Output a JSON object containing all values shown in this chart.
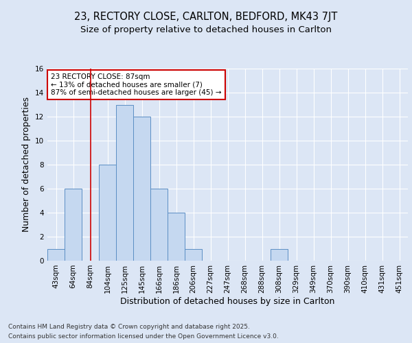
{
  "title_line1": "23, RECTORY CLOSE, CARLTON, BEDFORD, MK43 7JT",
  "title_line2": "Size of property relative to detached houses in Carlton",
  "xlabel": "Distribution of detached houses by size in Carlton",
  "ylabel": "Number of detached properties",
  "categories": [
    "43sqm",
    "64sqm",
    "84sqm",
    "104sqm",
    "125sqm",
    "145sqm",
    "166sqm",
    "186sqm",
    "206sqm",
    "227sqm",
    "247sqm",
    "268sqm",
    "288sqm",
    "308sqm",
    "329sqm",
    "349sqm",
    "370sqm",
    "390sqm",
    "410sqm",
    "431sqm",
    "451sqm"
  ],
  "values": [
    1,
    6,
    0,
    8,
    13,
    12,
    6,
    4,
    1,
    0,
    0,
    0,
    0,
    1,
    0,
    0,
    0,
    0,
    0,
    0,
    0
  ],
  "bar_color": "#c5d8f0",
  "bar_edge_color": "#5b8ec4",
  "ylim": [
    0,
    16
  ],
  "yticks": [
    0,
    2,
    4,
    6,
    8,
    10,
    12,
    14,
    16
  ],
  "vline_x": 2,
  "vline_color": "#cc0000",
  "annotation_text": "23 RECTORY CLOSE: 87sqm\n← 13% of detached houses are smaller (7)\n87% of semi-detached houses are larger (45) →",
  "annotation_box_color": "#ffffff",
  "annotation_box_edge_color": "#cc0000",
  "footer_line1": "Contains HM Land Registry data © Crown copyright and database right 2025.",
  "footer_line2": "Contains public sector information licensed under the Open Government Licence v3.0.",
  "background_color": "#dce6f5",
  "grid_color": "#ffffff",
  "title_fontsize": 10.5,
  "subtitle_fontsize": 9.5,
  "axis_label_fontsize": 9,
  "tick_fontsize": 7.5,
  "annotation_fontsize": 7.5,
  "footer_fontsize": 6.5
}
